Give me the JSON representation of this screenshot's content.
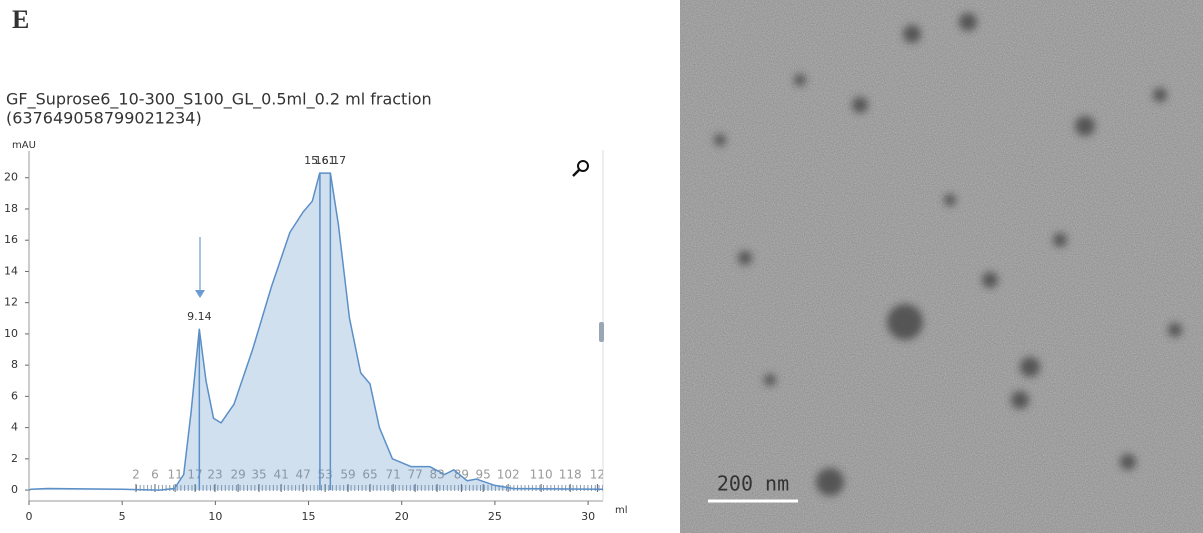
{
  "panel_label": "E",
  "chart_data": {
    "type": "area",
    "title": "GF_Suprose6_10-300_S100_GL_0.5ml_0.2 ml fraction",
    "subtitle": "(637649058799021234)",
    "ylabel": "mAU",
    "xlabel": "ml",
    "x": [
      0,
      0.1,
      1,
      5,
      7,
      7.8,
      8.3,
      8.7,
      9.14,
      9.5,
      9.9,
      10.3,
      11,
      12,
      13,
      14,
      14.7,
      15.2,
      15.6,
      16.17,
      16.6,
      17.2,
      17.8,
      18.3,
      18.8,
      19.5,
      20.5,
      21.5,
      22.3,
      22.8,
      23.5,
      24,
      25,
      26,
      30.8
    ],
    "values": [
      0,
      0.05,
      0.1,
      0.05,
      0,
      0.1,
      1,
      5,
      10.3,
      7,
      4.6,
      4.3,
      5.5,
      9,
      13,
      16.5,
      17.8,
      18.5,
      20.3,
      20.3,
      17,
      11,
      7.5,
      6.8,
      4,
      2,
      1.5,
      1.5,
      1,
      1.3,
      0.6,
      0.7,
      0.3,
      0.1,
      0.05
    ],
    "color": "#5b8fc7",
    "xlim": [
      0,
      30.8
    ],
    "ylim": [
      -0.7,
      21.2
    ],
    "xticks": [
      0,
      5,
      10,
      15,
      20,
      25,
      30
    ],
    "yticks": [
      0,
      2,
      4,
      6,
      8,
      10,
      12,
      14,
      16,
      18,
      20
    ],
    "peaks": [
      {
        "x": 9.14,
        "y": 10.3
      },
      {
        "x": 15.61,
        "y": 20.3
      },
      {
        "x": 16.17,
        "y": 20.3
      }
    ],
    "fractions": {
      "x": [
        5.74,
        6.76,
        7.84,
        8.91,
        9.98,
        11.22,
        12.34,
        13.53,
        14.71,
        15.89,
        17.12,
        18.3,
        19.54,
        20.72,
        21.9,
        23.2,
        24.37,
        25.71,
        27.48,
        29.04,
        30.5
      ],
      "labels": [
        2,
        6,
        11,
        17,
        23,
        29,
        35,
        41,
        47,
        53,
        59,
        65,
        71,
        77,
        83,
        89,
        95,
        102,
        110,
        118,
        12
      ]
    }
  },
  "image": {
    "scale_bar": "200 nm"
  }
}
